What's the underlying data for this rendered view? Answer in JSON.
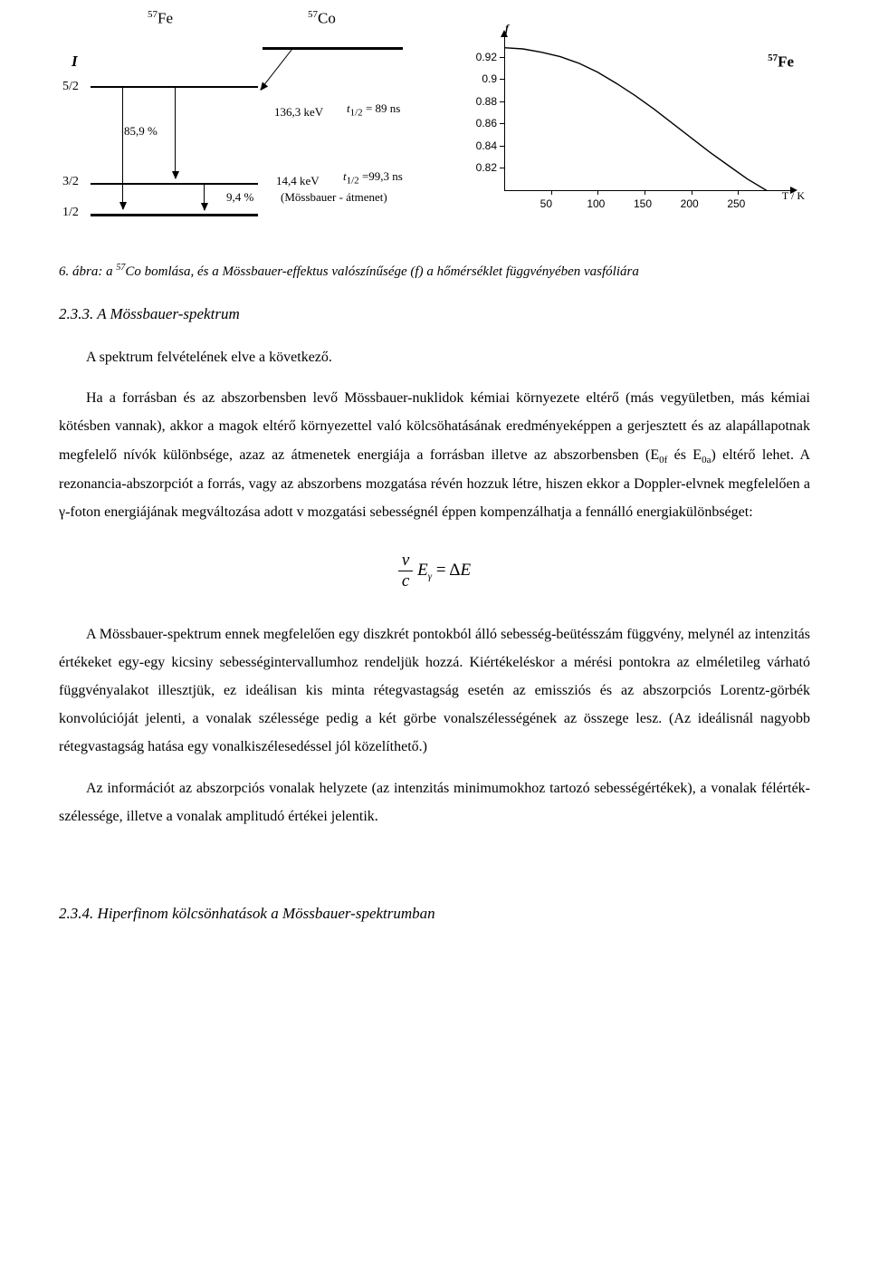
{
  "figure": {
    "decay": {
      "iso_parent": "Fe",
      "iso_parent_mass": "57",
      "iso_daughter": "Co",
      "iso_daughter_mass": "57",
      "I_label": "I",
      "level_52": "5/2",
      "level_32": "3/2",
      "level_12": "1/2",
      "branch_859": "85,9 %",
      "branch_94": "9,4 %",
      "e_1363": "136,3 keV",
      "e_144": "14,4 keV",
      "t_half_1": "t",
      "t_half_1_sub": "1/2",
      "t_half_1_val": " = 89 ns",
      "t_half_2": "t",
      "t_half_2_sub": "1/2",
      "t_half_2_val": " =99,3 ns",
      "moss_line": "(Mössbauer - átmenet)"
    },
    "chart": {
      "y_label": "f",
      "x_label": "T / K",
      "iso": "Fe",
      "iso_mass": "57",
      "y_ticks": [
        "0.82",
        "0.84",
        "0.86",
        "0.88",
        "0.9",
        "0.92"
      ],
      "x_ticks": [
        "50",
        "100",
        "150",
        "200",
        "250"
      ],
      "curve_points": [
        [
          0,
          0.928
        ],
        [
          20,
          0.927
        ],
        [
          40,
          0.924
        ],
        [
          60,
          0.92
        ],
        [
          80,
          0.914
        ],
        [
          100,
          0.906
        ],
        [
          120,
          0.896
        ],
        [
          140,
          0.885
        ],
        [
          160,
          0.873
        ],
        [
          180,
          0.86
        ],
        [
          200,
          0.847
        ],
        [
          220,
          0.834
        ],
        [
          240,
          0.822
        ],
        [
          260,
          0.81
        ],
        [
          280,
          0.8
        ],
        [
          295,
          0.793
        ]
      ],
      "xlim": [
        0,
        300
      ],
      "ylim": [
        0.8,
        0.94
      ],
      "color": "#000000"
    }
  },
  "caption": {
    "num": "6. ábra:",
    "text_a": " a ",
    "iso_mass": "57",
    "iso": "Co",
    "text_b": " bomlása, és a Mössbauer-effektus valószínűsége (f) a hőmérséklet függvényében vasfóliára"
  },
  "section1": {
    "heading": "2.3.3. A Mössbauer-spektrum",
    "p1": "A spektrum felvételének elve a következő.",
    "p2a": "Ha a forrásban és az abszorbensben levő Mössbauer-nuklidok kémiai környezete eltérő (más vegyületben, más kémiai kötésben vannak), akkor a magok eltérő környezettel való kölcsöhatásának eredményeképpen a gerjesztett és az alapállapotnak megfelelő nívók különbsége, azaz az átmenetek energiája a forrásban illetve az abszorbensben (E",
    "sub0f": "0f",
    "p2b": " és E",
    "sub0a": "0a",
    "p2c": ") eltérő lehet. A rezonancia-abszorpciót a forrás, vagy az abszorbens mozgatása révén hozzuk létre, hiszen ekkor a Doppler-elvnek megfelelően a γ-foton energiájának megváltozása adott v mozgatási sebességnél éppen kompenzálhatja a fennálló energiakülönbséget:"
  },
  "formula": {
    "num": "v",
    "den": "c",
    "E": "E",
    "Esub": "γ",
    "eq": " = Δ",
    "rhs": "E"
  },
  "section1b": {
    "p3": "A Mössbauer-spektrum ennek megfelelően egy diszkrét pontokból álló sebesség-beütésszám függvény, melynél az intenzitás értékeket egy-egy kicsiny sebességintervallumhoz rendeljük hozzá. Kiértékeléskor a mérési pontokra az elméletileg várható függvényalakot illesztjük, ez ideálisan kis minta rétegvastagság esetén az emissziós és az abszorpciós Lorentz-görbék konvolúcióját jelenti, a vonalak szélessége pedig a két görbe vonalszélességének az összege lesz. (Az ideálisnál nagyobb rétegvastagság hatása egy vonalkiszélesedéssel jól közelíthető.)",
    "p4": "Az információt az abszorpciós vonalak helyzete (az intenzitás minimumokhoz tartozó sebességértékek), a vonalak félérték-szélessége, illetve a vonalak amplitudó értékei jelentik."
  },
  "section2": {
    "heading": "2.3.4. Hiperfinom kölcsönhatások a Mössbauer-spektrumban"
  }
}
